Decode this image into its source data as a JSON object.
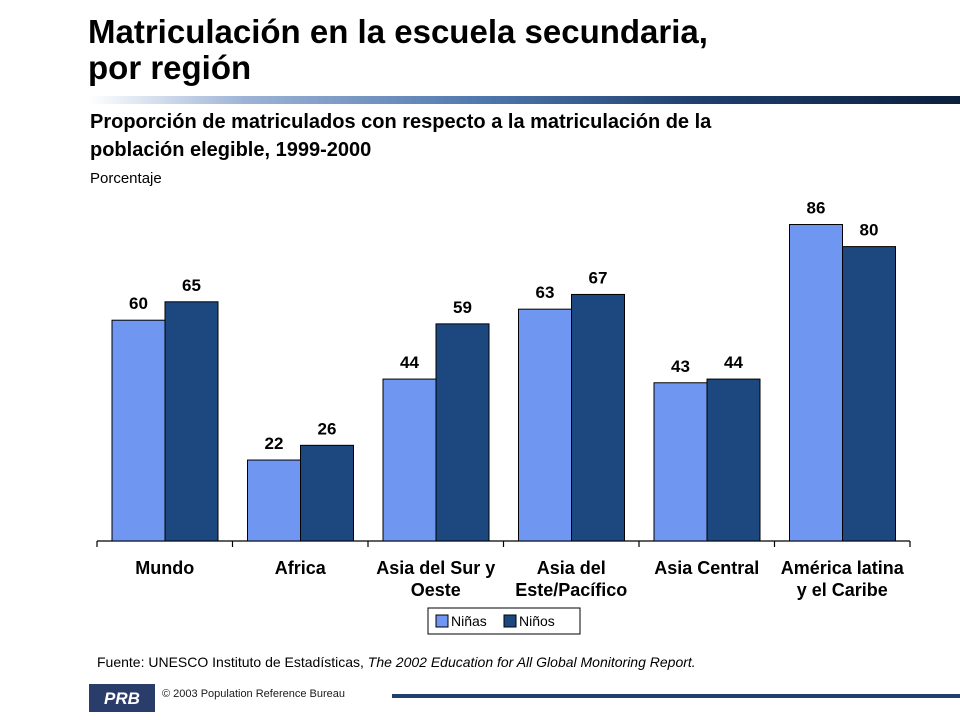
{
  "header": {
    "title_line1": "Matriculación en la escuela secundaria,",
    "title_line2": "por región",
    "subtitle_line1": "Proporción de matriculados con respecto a la matriculación de la",
    "subtitle_line2": "población elegible, 1999-2000",
    "unit_label": "Porcentaje"
  },
  "colors": {
    "ninas": "#6f96f0",
    "ninos": "#1c477f",
    "accent": "#1f3f6e"
  },
  "chart_data": {
    "type": "bar",
    "ylabel": "Porcentaje",
    "ylim": [
      0,
      100
    ],
    "grid": false,
    "legend_position": "bottom",
    "categories": [
      [
        "Mundo"
      ],
      [
        "Africa"
      ],
      [
        "Asia del Sur y",
        "Oeste"
      ],
      [
        "Asia del",
        "Este/Pacífico"
      ],
      [
        "Asia Central"
      ],
      [
        "América latina",
        "y el Caribe"
      ]
    ],
    "series": [
      {
        "name": "Niñas",
        "color": "#6f96f0",
        "values": [
          60,
          22,
          44,
          63,
          43,
          86
        ]
      },
      {
        "name": "Niños",
        "color": "#1c477f",
        "values": [
          65,
          26,
          59,
          67,
          44,
          80
        ]
      }
    ]
  },
  "footer": {
    "source_prefix": "Fuente: UNESCO Instituto de Estadísticas, ",
    "source_title": "The 2002 Education for All Global Monitoring Report.",
    "copyright": "© 2003  Population Reference Bureau",
    "logo_text": "PRB"
  }
}
